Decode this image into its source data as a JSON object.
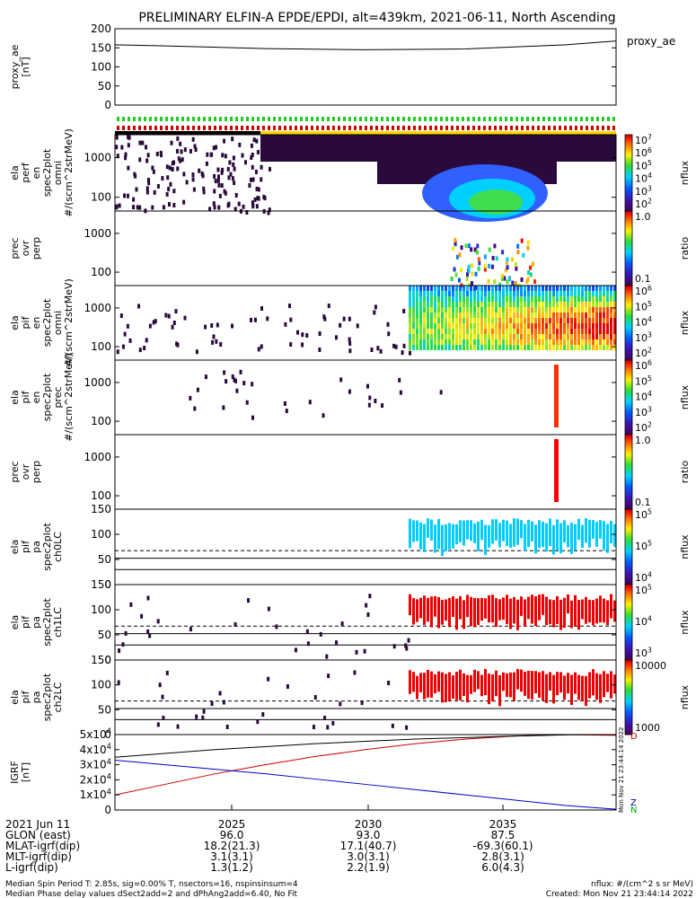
{
  "title": "PRELIMINARY ELFIN-A EPDE/EPDI, alt=439km, 2021-06-11, North Ascending",
  "chart_data": [
    {
      "type": "line",
      "ylabel": "proxy_ae [nT]",
      "legend": "proxy_ae",
      "yticks": [
        "0",
        "50",
        "100",
        "150",
        "200"
      ],
      "ylim": [
        0,
        200
      ],
      "series": [
        {
          "name": "proxy_ae",
          "x": [
            0,
            0.1,
            0.3,
            0.5,
            0.7,
            0.9,
            1.0
          ],
          "values": [
            158,
            155,
            148,
            145,
            147,
            158,
            168
          ]
        }
      ]
    },
    {
      "type": "heatmap",
      "ylabel": "ela perf en spec2plot omni #/(scm^2strMeV)",
      "yticks": [
        "100",
        "1000"
      ],
      "colorbar": {
        "label": "nflux",
        "ticks": [
          "10^2",
          "10^3",
          "10^4",
          "10^5",
          "10^6",
          "10^7"
        ]
      }
    },
    {
      "type": "heatmap",
      "ylabel": "prec ovr perp",
      "yticks": [
        "100",
        "1000"
      ],
      "colorbar": {
        "label": "ratio",
        "ticks": [
          "0.1",
          "1.0"
        ]
      }
    },
    {
      "type": "heatmap",
      "ylabel": "ela pif en spec2plot omni #/(scm^2strMeV)",
      "yticks": [
        "100",
        "1000"
      ],
      "colorbar": {
        "label": "nflux",
        "ticks": [
          "10^2",
          "10^3",
          "10^4",
          "10^5",
          "10^6"
        ]
      }
    },
    {
      "type": "heatmap",
      "ylabel": "ela pif en spec2plot prec #/(scm^2strMeV)",
      "yticks": [
        "100",
        "1000"
      ],
      "colorbar": {
        "label": "nflux",
        "ticks": [
          "10^2",
          "10^3",
          "10^4",
          "10^5",
          "10^6"
        ]
      }
    },
    {
      "type": "heatmap",
      "ylabel": "prec ovr perp",
      "yticks": [
        "100",
        "1000"
      ],
      "colorbar": {
        "label": "ratio",
        "ticks": [
          "0.1",
          "1.0"
        ]
      }
    },
    {
      "type": "heatmap",
      "ylabel": "ela pif pa spec2plot ch0LC",
      "yticks": [
        "0",
        "50",
        "100",
        "150"
      ],
      "colorbar": {
        "label": "nflux",
        "ticks": [
          "10^4",
          "10^5",
          "10^5"
        ]
      }
    },
    {
      "type": "heatmap",
      "ylabel": "ela pif pa spec2plot ch1LC",
      "yticks": [
        "0",
        "50",
        "100",
        "150"
      ],
      "colorbar": {
        "label": "nflux",
        "ticks": [
          "10^3",
          "10^4",
          "10^5"
        ]
      }
    },
    {
      "type": "heatmap",
      "ylabel": "ela pif pa spec2plot ch2LC",
      "yticks": [
        "0",
        "50",
        "100",
        "150"
      ],
      "colorbar": {
        "label": "nflux",
        "ticks": [
          "1000",
          "10000"
        ]
      }
    },
    {
      "type": "line",
      "ylabel": "IGRF [nT]",
      "yticks": [
        "0",
        "1x10^4",
        "2x10^4",
        "3x10^4",
        "4x10^4",
        "5x10^4"
      ],
      "ylim": [
        0,
        50000
      ],
      "legend": [
        "D",
        "Z",
        "N"
      ],
      "series": [
        {
          "name": "D",
          "color": "#cc0000",
          "x": [
            0,
            0.1,
            0.2,
            0.3,
            0.4,
            0.5,
            0.6,
            0.7,
            0.8,
            0.9,
            1.0
          ],
          "values": [
            10000,
            17000,
            24000,
            30000,
            35500,
            40000,
            44000,
            47000,
            49000,
            50000,
            49500
          ]
        },
        {
          "name": "Z",
          "color": "#0000cc",
          "x": [
            0,
            0.1,
            0.2,
            0.3,
            0.4,
            0.5,
            0.6,
            0.7,
            0.8,
            0.9,
            1.0
          ],
          "values": [
            33000,
            30000,
            27000,
            24000,
            20500,
            17000,
            13500,
            10000,
            6500,
            3000,
            500
          ]
        },
        {
          "name": "N",
          "color": "#00aa00",
          "x": [
            0,
            1.0
          ],
          "values": [
            0,
            0
          ]
        },
        {
          "name": "total",
          "color": "#000000",
          "x": [
            0,
            0.1,
            0.2,
            0.3,
            0.4,
            0.5,
            0.6,
            0.7,
            0.8,
            0.9,
            1.0
          ],
          "values": [
            35000,
            37500,
            40000,
            42000,
            44000,
            45500,
            47000,
            48000,
            49000,
            49800,
            50000
          ]
        }
      ]
    }
  ],
  "timestamp_vertical": "Mon Nov 21 23:44:14 2022",
  "xaxis": {
    "tick_labels": [
      "2025",
      "2030",
      "2035"
    ],
    "rows": [
      {
        "label": "2021 Jun 11",
        "values": [
          "",
          "",
          ""
        ]
      },
      {
        "label": "GLON (east)",
        "values": [
          "96.0",
          "93.0",
          "87.5"
        ]
      },
      {
        "label": "MLAT-igrf(dip)",
        "values": [
          "18.2(21.3)",
          "17.1(40.7)",
          "-69.3(60.1)"
        ]
      },
      {
        "label": "MLT-igrf(dip)",
        "values": [
          "3.1(3.1)",
          "3.0(3.1)",
          "2.8(3.1)"
        ]
      },
      {
        "label": "L-igrf(dip)",
        "values": [
          "1.3(1.2)",
          "2.2(1.9)",
          "6.0(4.3)"
        ]
      }
    ]
  },
  "footer": {
    "left1": "Median Spin Period T: 2.85s, sig=0.00% T, nsectors=16, nspinsinsum=4",
    "left2": "Median Phase delay values dSect2add=2 and dPhAng2add=6.40, No Fit",
    "right1": "nflux: #/(cm^2 s sr MeV)",
    "right2": "Created: Mon Nov 21 23:44:14 2022"
  },
  "colors": {
    "black": "#000000",
    "darkpurple": "#2a0a3c",
    "red": "#ff0000",
    "yellow": "#ffd700",
    "green": "#22cc22"
  }
}
